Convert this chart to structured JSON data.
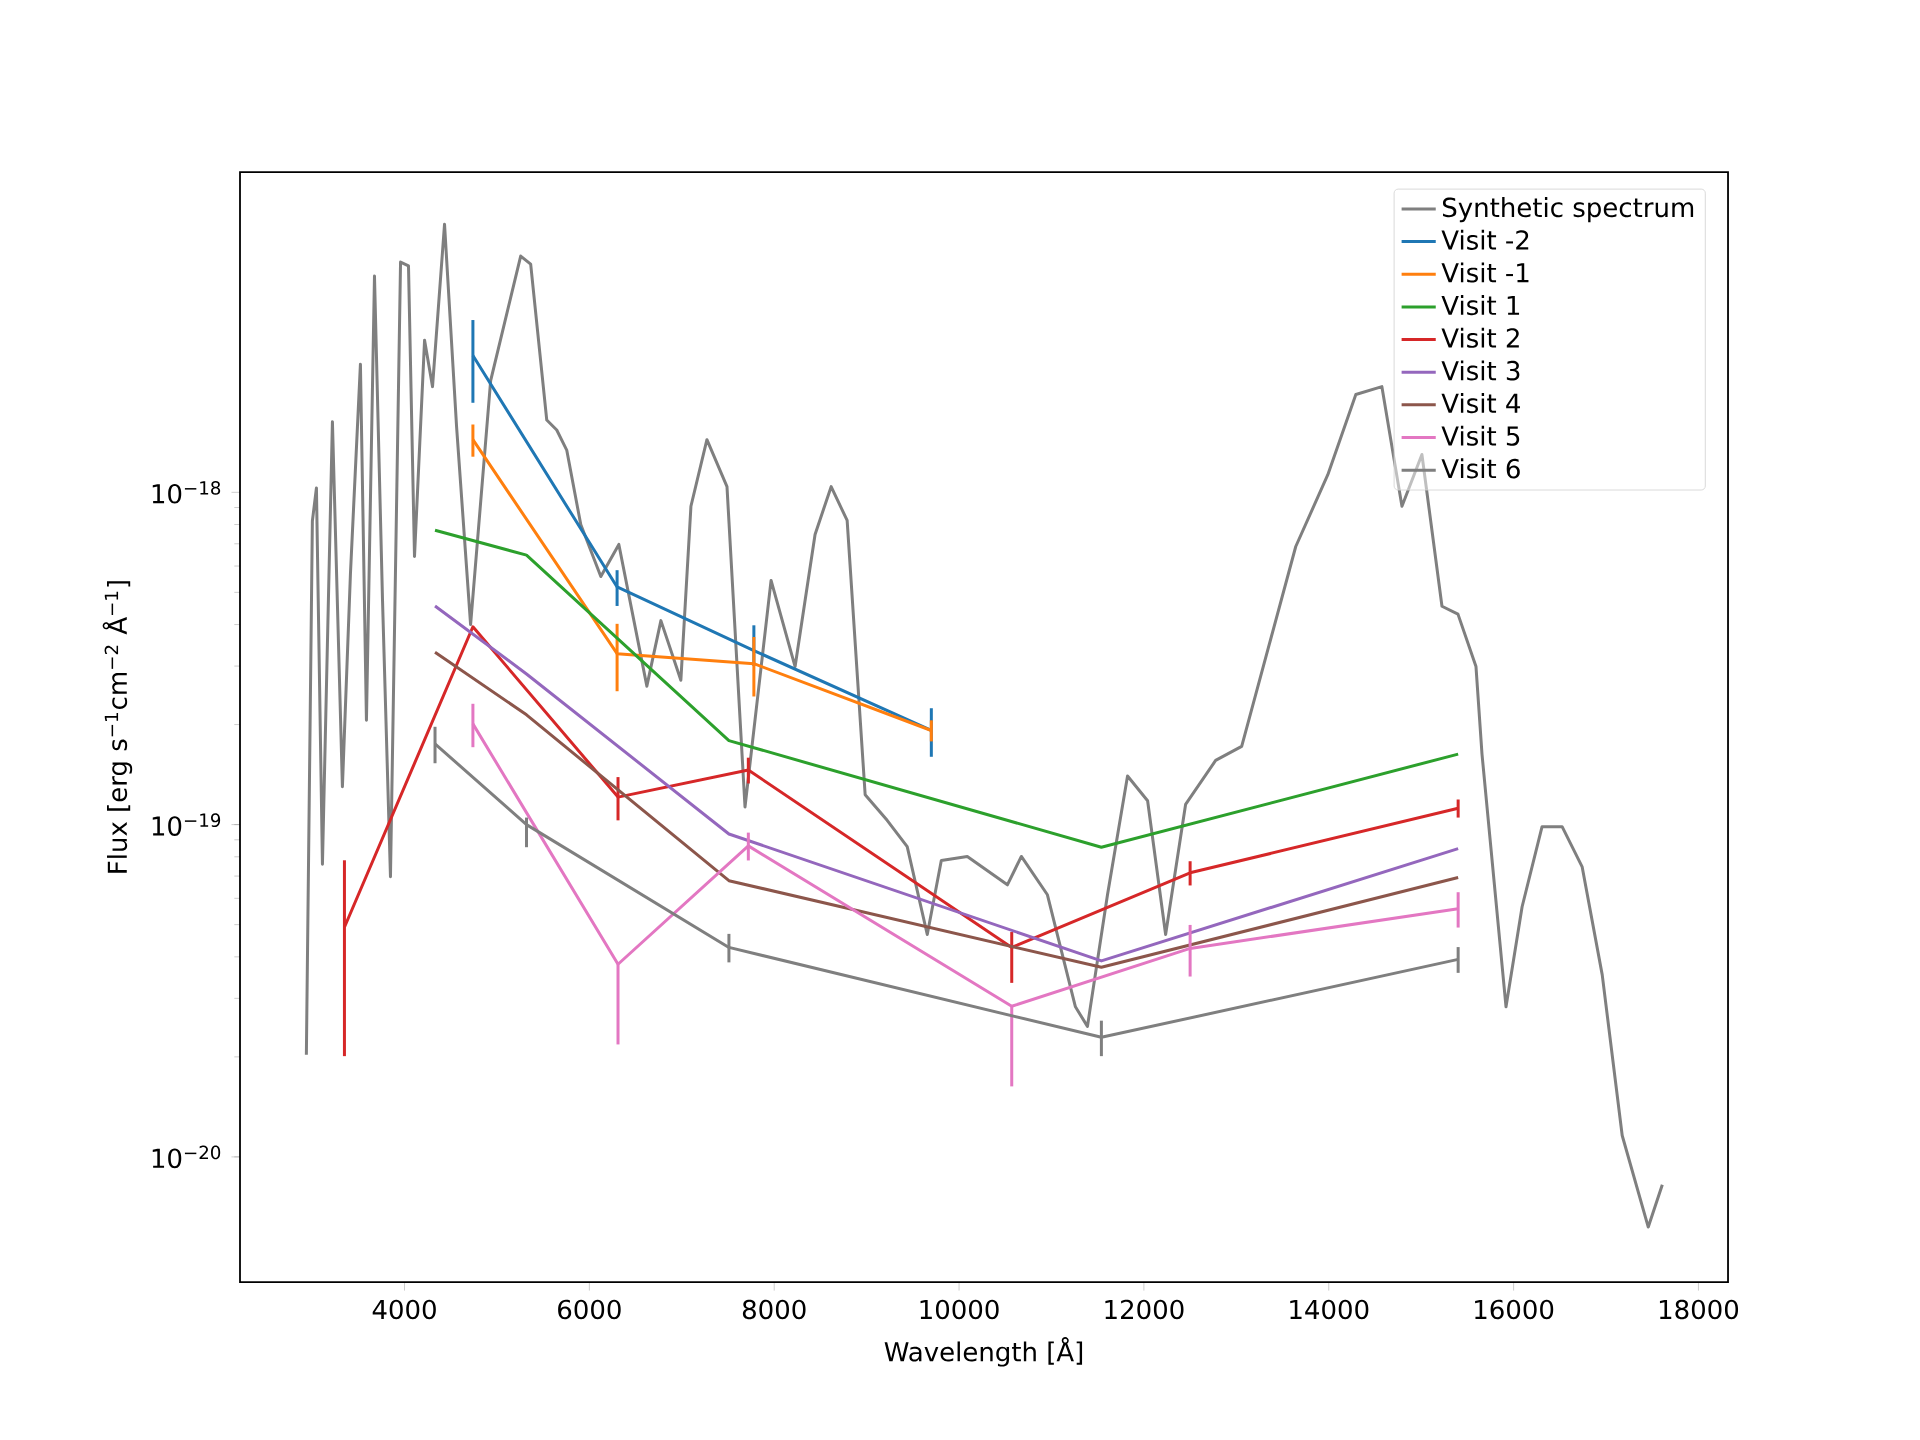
{
  "chart_data": {
    "type": "line",
    "xlabel": "Wavelength [Å]",
    "ylabel": "Flux [erg s$^{−1}$cm$^{−2}$ Å$^{−1}$]",
    "log": "y",
    "legend": "top right",
    "xlim": [
      2220,
      18320
    ],
    "ylim": [
      4.2e-21,
      9.2e-18
    ],
    "xticks": [
      4000,
      6000,
      8000,
      10000,
      12000,
      14000,
      16000,
      18000
    ],
    "yticks": [
      {
        "value": 1e-20,
        "label": "10$^{−20}$"
      },
      {
        "value": 1e-19,
        "label": "10$^{−19}$"
      },
      {
        "value": 1e-18,
        "label": "10$^{−18}$"
      }
    ],
    "series": [
      {
        "name": "Synthetic spectrum",
        "color": "#7f7f7f",
        "x": [
          2938,
          3003,
          3047,
          3112,
          3220,
          3328,
          3415,
          3523,
          3588,
          3675,
          3762,
          3848,
          3957,
          4043,
          4108,
          4217,
          4303,
          4433,
          4563,
          4715,
          4932,
          5257,
          5365,
          5539,
          5647,
          5755,
          5907,
          6124,
          6319,
          6622,
          6774,
          6990,
          7099,
          7272,
          7489,
          7684,
          7966,
          8226,
          8442,
          8616,
          8789,
          8984,
          9222,
          9439,
          9656,
          9808,
          10089,
          10523,
          10674,
          10956,
          11259,
          11389,
          11606,
          11823,
          12040,
          12235,
          12451,
          12776,
          13058,
          13643,
          13990,
          14293,
          14575,
          14792,
          15008,
          15225,
          15398,
          15593,
          15658,
          15918,
          16092,
          16308,
          16525,
          16742,
          16959,
          17175,
          17457,
          17609
        ],
        "values": [
          2.03e-20,
          8.2e-19,
          1.03e-18,
          7.6e-20,
          1.63e-18,
          1.3e-19,
          5.7e-19,
          2.43e-18,
          2.06e-19,
          4.48e-18,
          4.73e-19,
          6.97e-20,
          4.93e-18,
          4.8e-18,
          6.41e-19,
          2.87e-18,
          2.08e-18,
          6.41e-18,
          1.58e-18,
          4e-19,
          2.17e-18,
          5.14e-18,
          4.86e-18,
          1.65e-18,
          1.54e-18,
          1.34e-18,
          8e-19,
          5.58e-19,
          6.97e-19,
          2.61e-19,
          4.11e-19,
          2.72e-19,
          9.08e-19,
          1.44e-18,
          1.04e-18,
          1.13e-19,
          5.43e-19,
          2.99e-19,
          7.47e-19,
          1.04e-18,
          8.23e-19,
          1.23e-19,
          1.03e-19,
          8.59e-20,
          4.67e-20,
          7.8e-20,
          8.02e-20,
          6.59e-20,
          8.02e-20,
          6.15e-20,
          2.83e-20,
          2.47e-20,
          6.15e-20,
          1.4e-19,
          1.18e-19,
          4.67e-20,
          1.15e-19,
          1.56e-19,
          1.72e-19,
          6.87e-19,
          1.13e-18,
          1.97e-18,
          2.08e-18,
          9.08e-19,
          1.3e-18,
          4.54e-19,
          4.3e-19,
          2.99e-19,
          1.63e-19,
          2.83e-20,
          5.66e-20,
          9.86e-20,
          9.86e-20,
          7.46e-20,
          3.53e-20,
          1.16e-20,
          6.15e-21,
          8.24e-21
        ]
      },
      {
        "name": "Visit -2",
        "color": "#1f77b4",
        "x": [
          4740,
          6300,
          7780,
          9700
        ],
        "values": [
          2.58e-18,
          5.19e-19,
          3.34e-19,
          1.92e-19
        ],
        "errors": [
          7.2e-19,
          6.4e-20,
          [
            3e-19,
            3.98e-19
          ],
          3.2e-20
        ]
      },
      {
        "name": "Visit -1",
        "color": "#ff7f0e",
        "x": [
          4740,
          6300,
          7780,
          9700
        ],
        "values": [
          1.44e-18,
          3.27e-19,
          3.05e-19,
          1.92e-19
        ],
        "errors": [
          1.6e-19,
          7.5e-20,
          6.2e-20,
          1.4e-20
        ]
      },
      {
        "name": "Visit 1",
        "color": "#2ca02c",
        "x": [
          4330,
          5320,
          7510,
          11540,
          15400
        ],
        "values": [
          7.69e-19,
          6.47e-19,
          1.79e-19,
          8.55e-20,
          1.63e-19
        ]
      },
      {
        "name": "Visit 2",
        "color": "#d62728",
        "x": [
          3350,
          4740,
          6310,
          7720,
          10570,
          12500,
          15400
        ],
        "values": [
          4.91e-20,
          3.94e-19,
          1.21e-19,
          1.46e-19,
          4.27e-20,
          7.16e-20,
          1.12e-19
        ],
        "errors": [
          2.9e-20,
          null,
          1.8e-20,
          1.3e-20,
          [
            3.34e-20,
            4.75e-20
          ],
          6e-21,
          7e-21
        ]
      },
      {
        "name": "Visit 3",
        "color": "#9467bd",
        "x": [
          4330,
          5320,
          7510,
          11540,
          15400
        ],
        "values": [
          4.55e-19,
          2.84e-19,
          9.37e-20,
          3.89e-20,
          8.47e-20
        ]
      },
      {
        "name": "Visit 4",
        "color": "#8c564b",
        "x": [
          4330,
          5320,
          7510,
          11540,
          15400
        ],
        "values": [
          3.3e-19,
          2.14e-19,
          6.78e-20,
          3.72e-20,
          6.93e-20
        ]
      },
      {
        "name": "Visit 5",
        "color": "#e377c2",
        "x": [
          4740,
          6310,
          7720,
          10570,
          12500,
          15400
        ],
        "values": [
          2.01e-19,
          3.8e-20,
          8.63e-20,
          2.84e-20,
          4.24e-20,
          5.58e-20
        ],
        "errors": [
          3e-20,
          [
            2.18e-20,
            3.8e-20
          ],
          8.3e-21,
          [
            1.63e-20,
            2.84e-20
          ],
          7.5e-21,
          6.8e-21
        ]
      },
      {
        "name": "Visit 6",
        "color": "#7f7f7f",
        "x": [
          4330,
          5320,
          7510,
          11540,
          15400
        ],
        "values": [
          1.75e-19,
          1e-19,
          4.27e-20,
          2.29e-20,
          3.93e-20
        ],
        "errors": [
          2.2e-20,
          [
            8.55e-20,
            1.05e-19
          ],
          4.2e-21,
          2.8e-21,
          3.5e-21
        ]
      }
    ]
  }
}
